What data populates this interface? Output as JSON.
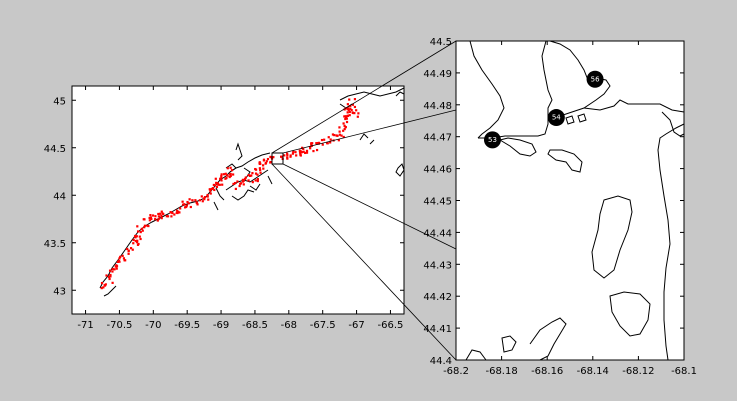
{
  "main_map": {
    "x_ticks": [
      "-71",
      "-70.5",
      "-70",
      "-69.5",
      "-69",
      "-68.5",
      "-68",
      "-67.5",
      "-67",
      "-66.5"
    ],
    "y_ticks": [
      "45",
      "44.5",
      "44",
      "43.5",
      "43"
    ],
    "xlim": [
      -71.2,
      -66.3
    ],
    "ylim": [
      42.75,
      45.15
    ],
    "points_color": "#ff0000",
    "coast_color": "#000000"
  },
  "inset_map": {
    "x_ticks": [
      "-68.2",
      "-68.18",
      "-68.16",
      "-68.14",
      "-68.12",
      "-68.1"
    ],
    "y_ticks": [
      "44.5",
      "44.49",
      "44.48",
      "44.47",
      "44.46",
      "44.45",
      "44.44",
      "44.43",
      "44.42",
      "44.41",
      "44.4"
    ],
    "xlim": [
      -68.2,
      -68.1
    ],
    "ylim": [
      44.4,
      44.5
    ],
    "stations": [
      {
        "label": "56",
        "lon": -68.139,
        "lat": 44.488
      },
      {
        "label": "54",
        "lon": -68.156,
        "lat": 44.476
      },
      {
        "label": "53",
        "lon": -68.184,
        "lat": 44.469
      }
    ]
  },
  "colors": {
    "background": "#c8c8c8",
    "axes_bg": "#ffffff",
    "marker": "#000000"
  }
}
